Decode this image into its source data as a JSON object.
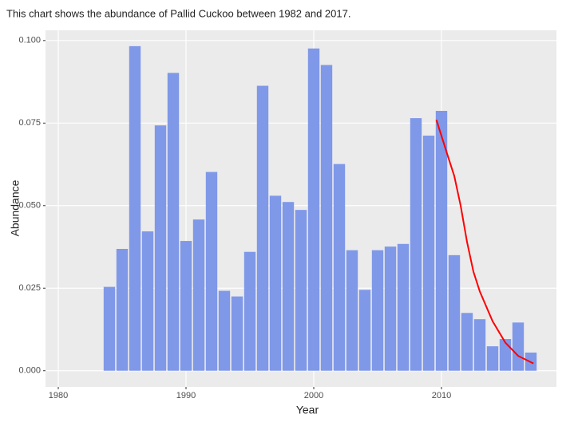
{
  "chart_data": {
    "type": "bar",
    "title": "This chart shows the abundance of Pallid Cuckoo between 1982 and 2017.",
    "x_label": "Year",
    "y_label": "Abundance",
    "x": [
      1984,
      1985,
      1986,
      1987,
      1988,
      1989,
      1990,
      1991,
      1992,
      1993,
      1994,
      1995,
      1996,
      1997,
      1998,
      1999,
      2000,
      2001,
      2002,
      2003,
      2004,
      2005,
      2006,
      2007,
      2008,
      2009,
      2010,
      2011,
      2012,
      2013,
      2014,
      2015,
      2016,
      2017
    ],
    "values": [
      0.0254,
      0.0369,
      0.0983,
      0.0422,
      0.0743,
      0.0902,
      0.0393,
      0.0458,
      0.0602,
      0.0242,
      0.0225,
      0.036,
      0.0863,
      0.053,
      0.0511,
      0.0487,
      0.0976,
      0.0926,
      0.0626,
      0.0365,
      0.0245,
      0.0365,
      0.0376,
      0.0384,
      0.0765,
      0.0712,
      0.0787,
      0.035,
      0.0175,
      0.0156,
      0.0074,
      0.0096,
      0.0146,
      0.0055
    ],
    "color": "#7f98e8",
    "trend": {
      "x": [
        2009.6,
        2010.5,
        2011,
        2011.5,
        2012,
        2012.5,
        2013,
        2014,
        2015,
        2016,
        2017.2
      ],
      "values": [
        0.076,
        0.065,
        0.059,
        0.05,
        0.039,
        0.03,
        0.024,
        0.015,
        0.0085,
        0.0045,
        0.0022
      ],
      "color": "#ff0000"
    },
    "xlim": [
      1979,
      2019
    ],
    "xticks": [
      1980,
      1990,
      2000,
      2010
    ],
    "ylim": [
      -0.0049,
      0.1031
    ],
    "yticks": [
      {
        "value": 0,
        "label": "0.000"
      },
      {
        "value": 0.025,
        "label": "0.025"
      },
      {
        "value": 0.05,
        "label": "0.050"
      },
      {
        "value": 0.075,
        "label": "0.075"
      },
      {
        "value": 0.1,
        "label": "0.100"
      }
    ],
    "grid": true
  }
}
